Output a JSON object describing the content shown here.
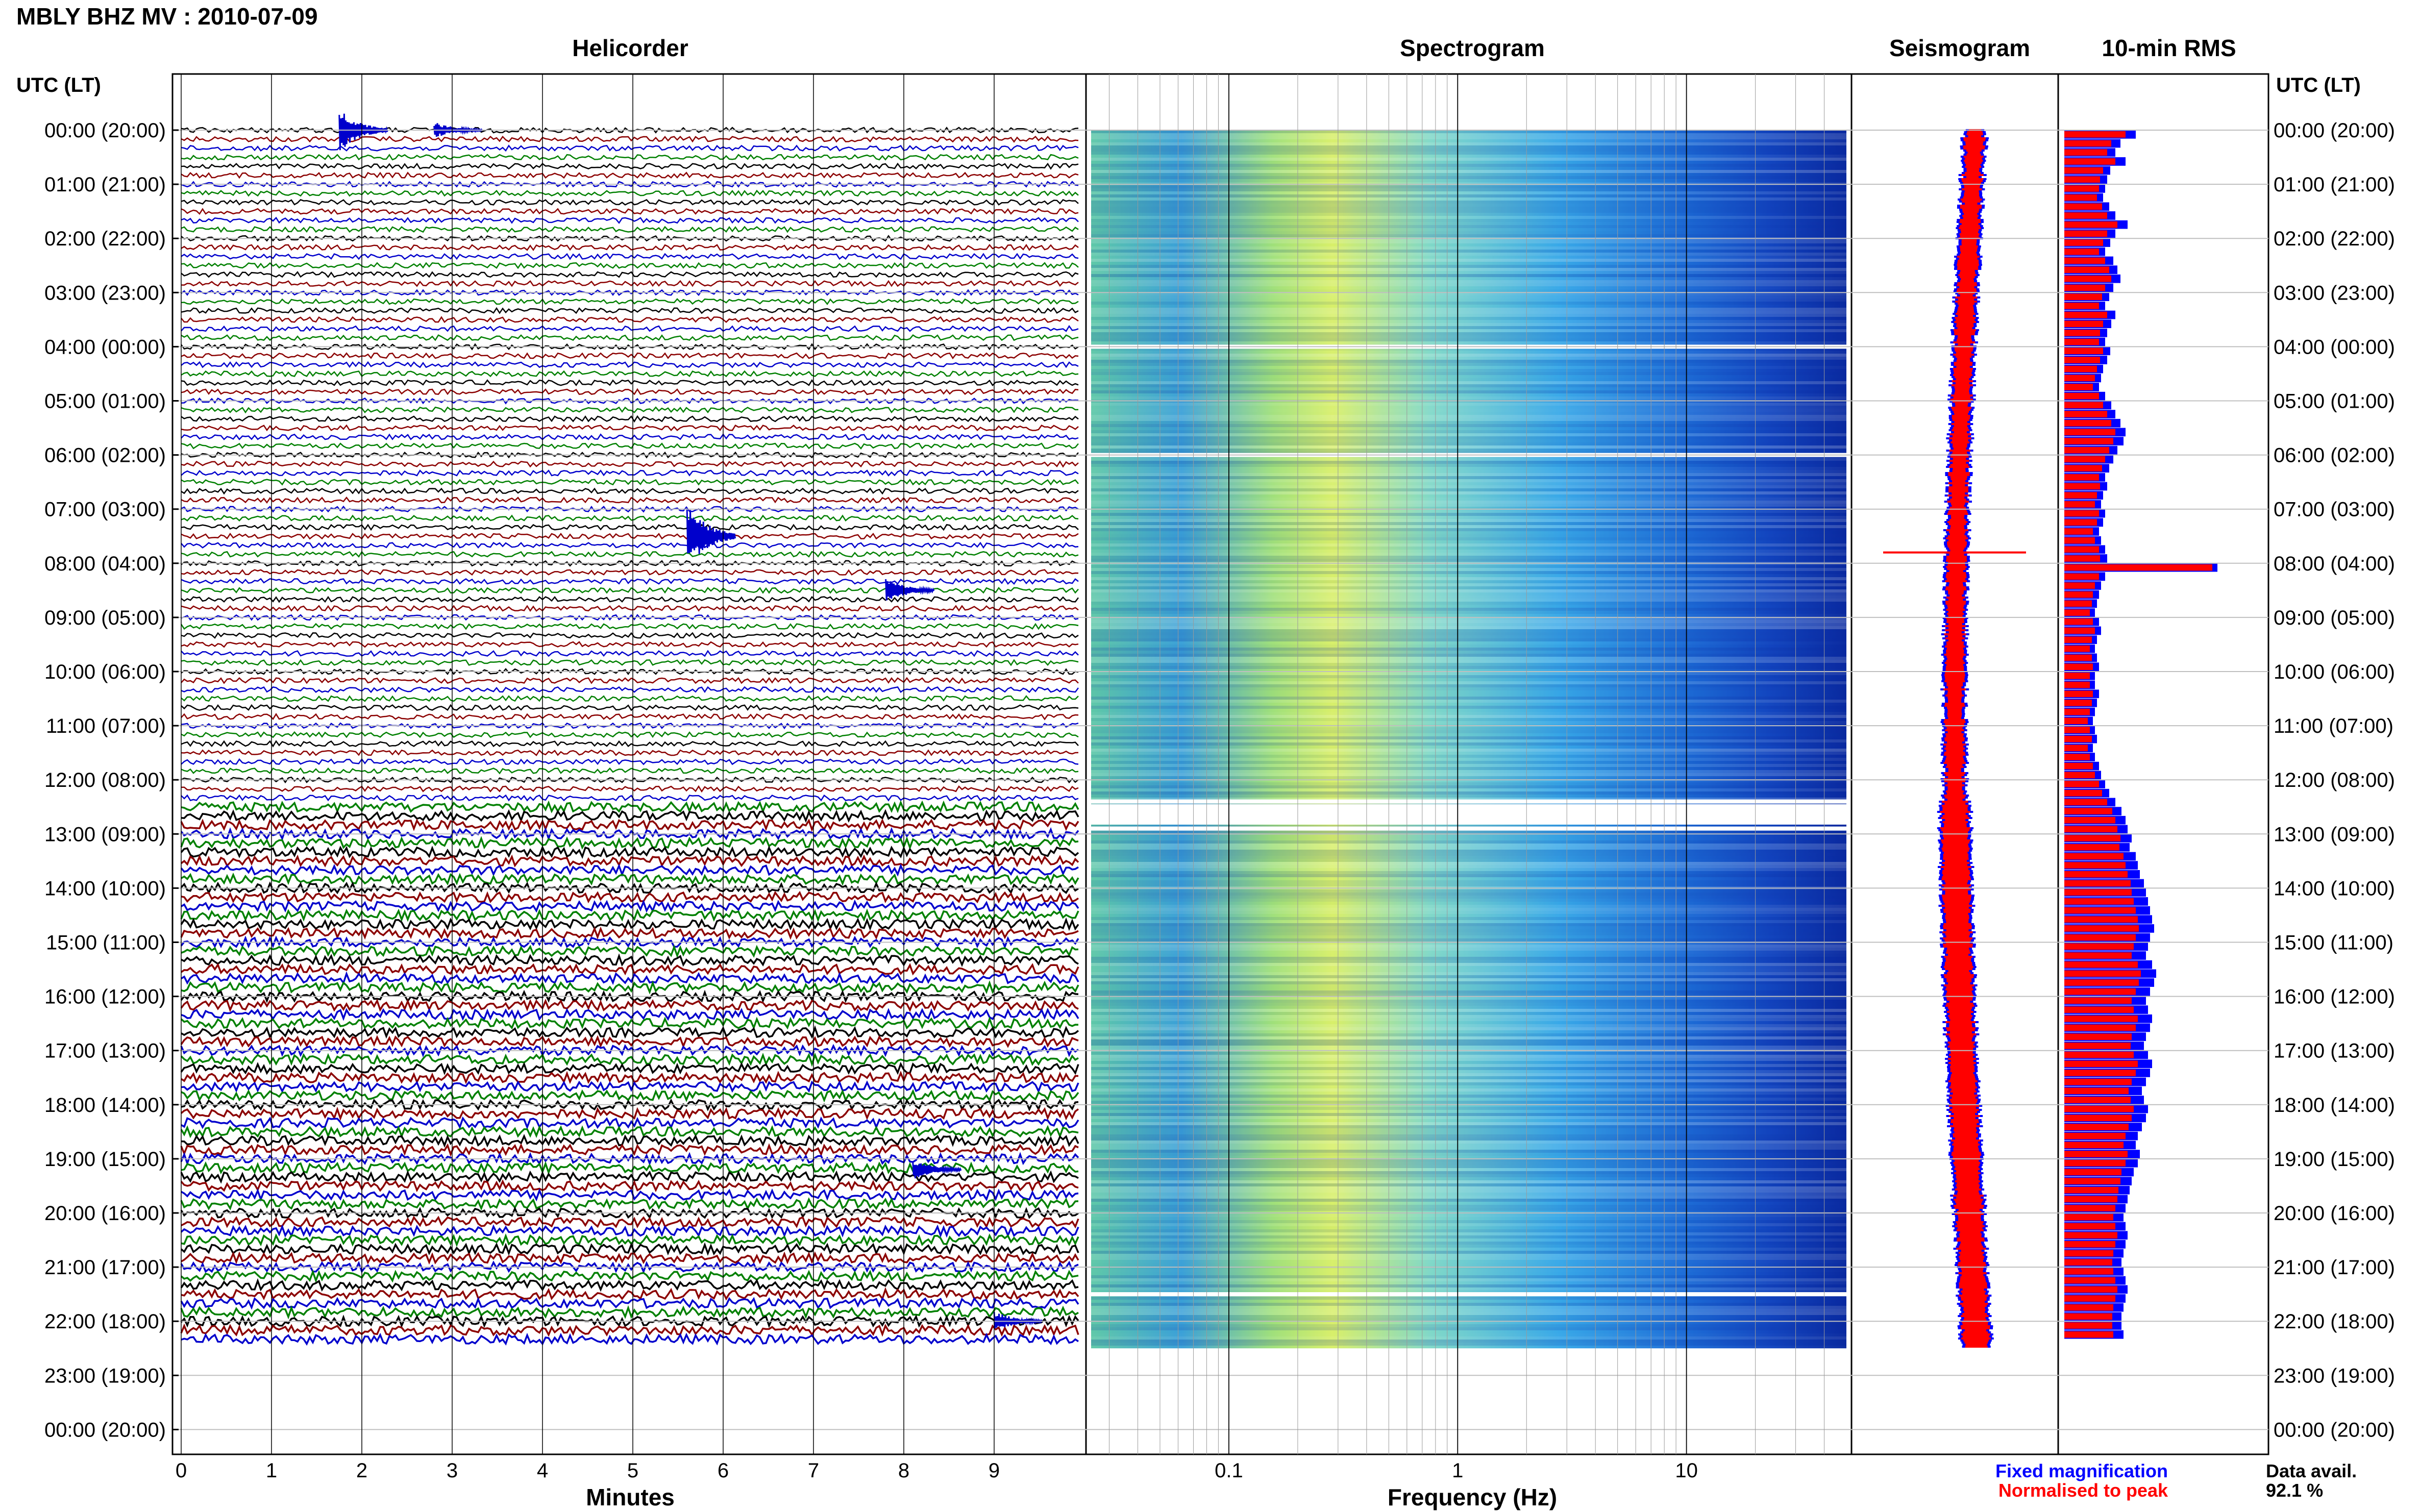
{
  "header": {
    "station_title": "MBLY BHZ MV : 2010-07-09"
  },
  "panels": {
    "helicorder": "Helicorder",
    "spectrogram": "Spectrogram",
    "seismogram": "Seismogram",
    "rms": "10-min RMS"
  },
  "axes": {
    "time_axis_label": "UTC (LT)",
    "helicorder_xlabel": "Minutes",
    "spectrogram_xlabel": "Frequency (Hz)"
  },
  "legend": {
    "fixed": "Fixed magnification",
    "normalised": "Normalised to peak",
    "fixed_color": "#0000ff",
    "normalised_color": "#ff0000"
  },
  "data_avail": {
    "label": "Data avail.",
    "value": "92.1 %"
  },
  "colors": {
    "trace_cycle": [
      "#000000",
      "#8b0000",
      "#0000cc",
      "#008000"
    ],
    "spectrogram_low": "#2a7fd4",
    "spectrogram_mid": "#e6f060",
    "spectrogram_high": "#0a2aa0",
    "rms_fixed": "#0000ff",
    "rms_normalised": "#ff0000"
  },
  "chart_data": {
    "type": "heatmap",
    "time_ticks": [
      "00:00 (20:00)",
      "01:00 (21:00)",
      "02:00 (22:00)",
      "03:00 (23:00)",
      "04:00 (00:00)",
      "05:00 (01:00)",
      "06:00 (02:00)",
      "07:00 (03:00)",
      "08:00 (04:00)",
      "09:00 (05:00)",
      "10:00 (06:00)",
      "11:00 (07:00)",
      "12:00 (08:00)",
      "13:00 (09:00)",
      "14:00 (10:00)",
      "15:00 (11:00)",
      "16:00 (12:00)",
      "17:00 (13:00)",
      "18:00 (14:00)",
      "19:00 (15:00)",
      "20:00 (16:00)",
      "21:00 (17:00)",
      "22:00 (18:00)",
      "23:00 (19:00)",
      "00:00 (20:00)"
    ],
    "helicorder_minute_ticks": [
      "0",
      "1",
      "2",
      "3",
      "4",
      "5",
      "6",
      "7",
      "8",
      "9"
    ],
    "helicorder_xlim": [
      0,
      10
    ],
    "spectrogram_freq_ticks": [
      "0.1",
      "1",
      "10"
    ],
    "spectrogram_xlim_hz": [
      0.025,
      50
    ],
    "data_hours_covered": [
      0,
      22.5
    ],
    "data_gaps_hours": [
      4.0,
      6.0,
      12.4,
      12.9,
      21.5
    ],
    "helicorder_events": [
      {
        "hour": 0.0,
        "minute": 1.75,
        "amp": 2.2
      },
      {
        "hour": 0.0,
        "minute": 2.8,
        "amp": 0.8
      },
      {
        "hour": 7.5,
        "minute": 5.6,
        "amp": 3.2
      },
      {
        "hour": 8.5,
        "minute": 7.8,
        "amp": 1.2
      },
      {
        "hour": 19.2,
        "minute": 8.1,
        "amp": 1.0
      },
      {
        "hour": 22.0,
        "minute": 9.0,
        "amp": 1.0
      }
    ],
    "rms_fixed_relative": [
      0.7,
      0.55,
      0.5,
      0.6,
      0.45,
      0.42,
      0.4,
      0.38,
      0.44,
      0.5,
      0.62,
      0.5,
      0.45,
      0.4,
      0.48,
      0.52,
      0.55,
      0.48,
      0.44,
      0.4,
      0.5,
      0.46,
      0.42,
      0.4,
      0.45,
      0.42,
      0.38,
      0.36,
      0.34,
      0.4,
      0.46,
      0.5,
      0.55,
      0.6,
      0.58,
      0.52,
      0.48,
      0.44,
      0.4,
      0.42,
      0.38,
      0.36,
      0.4,
      0.38,
      0.34,
      0.36,
      0.4,
      0.42,
      1.5,
      0.4,
      0.36,
      0.34,
      0.32,
      0.3,
      0.34,
      0.36,
      0.32,
      0.3,
      0.32,
      0.34,
      0.3,
      0.3,
      0.34,
      0.32,
      0.3,
      0.28,
      0.3,
      0.32,
      0.28,
      0.3,
      0.34,
      0.36,
      0.4,
      0.44,
      0.5,
      0.56,
      0.6,
      0.62,
      0.66,
      0.64,
      0.7,
      0.72,
      0.74,
      0.78,
      0.8,
      0.82,
      0.84,
      0.86,
      0.88,
      0.84,
      0.82,
      0.8,
      0.86,
      0.9,
      0.88,
      0.84,
      0.8,
      0.82,
      0.86,
      0.84,
      0.8,
      0.78,
      0.82,
      0.86,
      0.84,
      0.8,
      0.76,
      0.78,
      0.82,
      0.8,
      0.76,
      0.72,
      0.7,
      0.74,
      0.72,
      0.68,
      0.66,
      0.64,
      0.62,
      0.6,
      0.58,
      0.6,
      0.62,
      0.6,
      0.58,
      0.56,
      0.58,
      0.6,
      0.62,
      0.6,
      0.58,
      0.56,
      0.56,
      0.58
    ],
    "rms_normalised_relative": [
      0.6,
      0.46,
      0.42,
      0.5,
      0.38,
      0.35,
      0.34,
      0.32,
      0.37,
      0.42,
      0.52,
      0.42,
      0.38,
      0.34,
      0.4,
      0.44,
      0.46,
      0.4,
      0.37,
      0.34,
      0.42,
      0.38,
      0.35,
      0.34,
      0.38,
      0.35,
      0.32,
      0.3,
      0.28,
      0.34,
      0.38,
      0.42,
      0.46,
      0.5,
      0.48,
      0.44,
      0.4,
      0.37,
      0.34,
      0.35,
      0.32,
      0.3,
      0.34,
      0.32,
      0.28,
      0.3,
      0.34,
      0.35,
      1.45,
      0.34,
      0.3,
      0.28,
      0.27,
      0.25,
      0.28,
      0.3,
      0.27,
      0.25,
      0.27,
      0.28,
      0.25,
      0.25,
      0.28,
      0.27,
      0.25,
      0.23,
      0.25,
      0.27,
      0.23,
      0.25,
      0.28,
      0.3,
      0.34,
      0.37,
      0.42,
      0.47,
      0.5,
      0.52,
      0.55,
      0.54,
      0.58,
      0.6,
      0.62,
      0.65,
      0.66,
      0.68,
      0.7,
      0.72,
      0.73,
      0.7,
      0.68,
      0.66,
      0.72,
      0.75,
      0.73,
      0.7,
      0.66,
      0.68,
      0.72,
      0.7,
      0.66,
      0.65,
      0.68,
      0.72,
      0.7,
      0.66,
      0.63,
      0.65,
      0.68,
      0.66,
      0.63,
      0.6,
      0.58,
      0.62,
      0.6,
      0.56,
      0.55,
      0.53,
      0.52,
      0.5,
      0.48,
      0.5,
      0.52,
      0.5,
      0.48,
      0.47,
      0.48,
      0.5,
      0.52,
      0.5,
      0.48,
      0.47,
      0.47,
      0.48
    ]
  }
}
